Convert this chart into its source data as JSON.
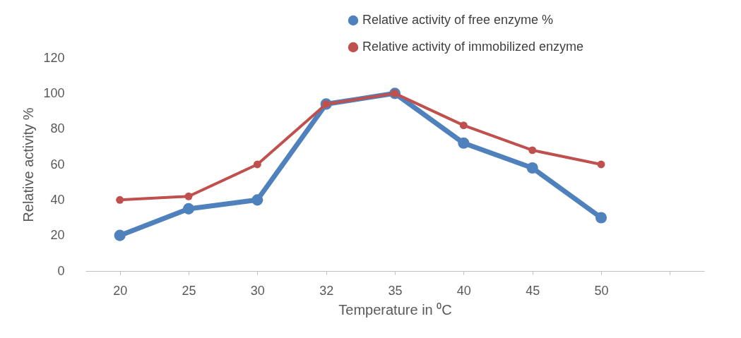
{
  "chart_data": {
    "type": "line",
    "xlabel": "Temperature in ⁰C",
    "ylabel": "Relative activity %",
    "categories": [
      "20",
      "25",
      "30",
      "32",
      "35",
      "40",
      "45",
      "50",
      null
    ],
    "series": [
      {
        "name": "Relative activity of free enzyme %",
        "color": "#4f81bd",
        "values": [
          20,
          35,
          40,
          94,
          100,
          72,
          58,
          30,
          null
        ]
      },
      {
        "name": "Relative  activity of immobilized enzyme",
        "color": "#c0504d",
        "values": [
          40,
          42,
          60,
          94,
          100,
          82,
          68,
          60,
          null
        ]
      }
    ],
    "ylim": [
      0,
      120
    ],
    "yticks": [
      0,
      20,
      40,
      60,
      80,
      100,
      120
    ],
    "grid": false,
    "legend": "top right",
    "marker": "circle",
    "line_style": "solid"
  }
}
